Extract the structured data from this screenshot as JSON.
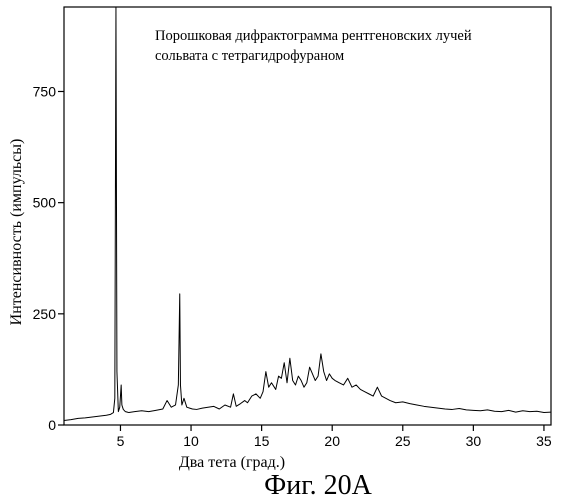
{
  "figure_caption": "Фиг. 20А",
  "chart_data": {
    "type": "line",
    "title": "",
    "annotation_lines": [
      "Порошковая дифрактограмма рентгеновских лучей",
      "сольвата с тетрагидрофураном"
    ],
    "xlabel": "Два тета (град.)",
    "ylabel": "Интенсивность (импульсы)",
    "xlim": [
      1,
      35.5
    ],
    "ylim": [
      0,
      940
    ],
    "x_ticks": [
      5,
      10,
      15,
      20,
      25,
      30,
      35
    ],
    "x_tick_labels": [
      "5",
      "10",
      "15",
      "20",
      "25",
      "30",
      "35"
    ],
    "y_ticks": [
      0,
      250,
      500,
      750
    ],
    "y_tick_labels": [
      "0",
      "250",
      "500",
      "750"
    ],
    "grid": false,
    "line_color": "#000000",
    "series": [
      {
        "x": [
          1.0,
          1.5,
          2.0,
          2.5,
          3.0,
          3.5,
          4.0,
          4.3,
          4.5,
          4.6,
          4.68,
          4.75,
          4.85,
          4.95,
          5.05,
          5.1,
          5.2,
          5.35,
          5.6,
          6.0,
          6.5,
          7.0,
          7.5,
          8.0,
          8.3,
          8.6,
          8.9,
          9.1,
          9.2,
          9.25,
          9.35,
          9.5,
          9.7,
          9.9,
          10.1,
          10.4,
          10.8,
          11.2,
          11.6,
          12.0,
          12.4,
          12.8,
          13.0,
          13.2,
          13.5,
          13.8,
          14.0,
          14.3,
          14.6,
          14.9,
          15.1,
          15.3,
          15.5,
          15.7,
          16.0,
          16.2,
          16.4,
          16.6,
          16.8,
          17.0,
          17.2,
          17.4,
          17.6,
          17.8,
          18.0,
          18.2,
          18.4,
          18.6,
          18.8,
          19.0,
          19.2,
          19.4,
          19.6,
          19.8,
          20.0,
          20.2,
          20.5,
          20.8,
          21.1,
          21.4,
          21.7,
          22.0,
          22.3,
          22.6,
          22.9,
          23.2,
          23.5,
          23.8,
          24.1,
          24.5,
          25.0,
          25.5,
          26.0,
          26.5,
          27.0,
          27.5,
          28.0,
          28.5,
          29.0,
          29.5,
          30.0,
          30.5,
          31.0,
          31.5,
          32.0,
          32.5,
          33.0,
          33.5,
          34.0,
          34.5,
          35.0,
          35.5
        ],
        "y": [
          10,
          12,
          15,
          16,
          18,
          20,
          22,
          24,
          28,
          60,
          940,
          120,
          30,
          40,
          90,
          45,
          35,
          30,
          28,
          30,
          32,
          30,
          33,
          36,
          55,
          40,
          45,
          90,
          295,
          90,
          45,
          60,
          40,
          38,
          36,
          35,
          38,
          40,
          42,
          36,
          45,
          40,
          70,
          42,
          48,
          55,
          50,
          65,
          70,
          60,
          75,
          120,
          85,
          95,
          80,
          110,
          105,
          140,
          95,
          150,
          100,
          90,
          110,
          100,
          85,
          95,
          130,
          115,
          100,
          110,
          160,
          120,
          100,
          115,
          105,
          100,
          95,
          90,
          105,
          85,
          90,
          80,
          75,
          70,
          65,
          85,
          65,
          60,
          55,
          50,
          52,
          48,
          45,
          42,
          40,
          38,
          36,
          35,
          37,
          34,
          33,
          32,
          34,
          31,
          30,
          33,
          29,
          32,
          30,
          31,
          28,
          29
        ]
      }
    ]
  }
}
